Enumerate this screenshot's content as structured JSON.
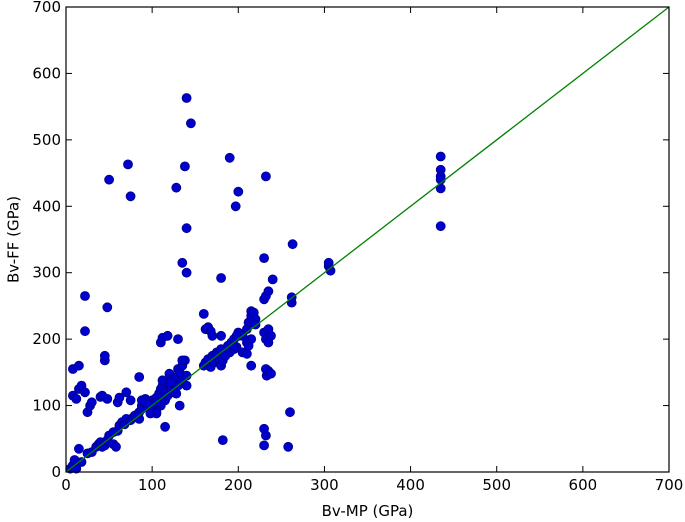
{
  "chart_data": {
    "type": "scatter",
    "xlabel": "Bv-MP (GPa)",
    "ylabel": "Bv-FF (GPa)",
    "xlim": [
      0,
      700
    ],
    "ylim": [
      0,
      700
    ],
    "xticks": [
      0,
      100,
      200,
      300,
      400,
      500,
      600,
      700
    ],
    "yticks": [
      0,
      100,
      200,
      300,
      400,
      500,
      600,
      700
    ],
    "grid": false,
    "colors": {
      "points": "#0000cc",
      "point_edge": "#00008b",
      "reference_line": "#008000"
    },
    "reference_line": {
      "from": [
        0,
        0
      ],
      "to": [
        700,
        700
      ]
    },
    "series": [
      {
        "values": [
          [
            5,
            5
          ],
          [
            8,
            10
          ],
          [
            10,
            18
          ],
          [
            12,
            5
          ],
          [
            15,
            35
          ],
          [
            18,
            15
          ],
          [
            25,
            28
          ],
          [
            30,
            30
          ],
          [
            35,
            38
          ],
          [
            38,
            42
          ],
          [
            40,
            45
          ],
          [
            42,
            38
          ],
          [
            45,
            40
          ],
          [
            48,
            48
          ],
          [
            50,
            55
          ],
          [
            55,
            42
          ],
          [
            55,
            60
          ],
          [
            58,
            38
          ],
          [
            60,
            62
          ],
          [
            62,
            70
          ],
          [
            65,
            75
          ],
          [
            68,
            72
          ],
          [
            70,
            80
          ],
          [
            75,
            78
          ],
          [
            78,
            82
          ],
          [
            80,
            85
          ],
          [
            85,
            80
          ],
          [
            85,
            90
          ],
          [
            88,
            95
          ],
          [
            88,
            100
          ],
          [
            90,
            105
          ],
          [
            92,
            110
          ],
          [
            95,
            98
          ],
          [
            98,
            102
          ],
          [
            100,
            100
          ],
          [
            100,
            108
          ],
          [
            102,
            95
          ],
          [
            105,
            90
          ],
          [
            105,
            112
          ],
          [
            108,
            118
          ],
          [
            110,
            100
          ],
          [
            110,
            125
          ],
          [
            112,
            130
          ],
          [
            115,
            108
          ],
          [
            115,
            120
          ],
          [
            118,
            115
          ],
          [
            118,
            135
          ],
          [
            120,
            140
          ],
          [
            120,
            148
          ],
          [
            122,
            125
          ],
          [
            125,
            120
          ],
          [
            128,
            130
          ],
          [
            130,
            145
          ],
          [
            130,
            155
          ],
          [
            132,
            150
          ],
          [
            135,
            138
          ],
          [
            135,
            160
          ],
          [
            138,
            168
          ],
          [
            140,
            130
          ],
          [
            140,
            145
          ],
          [
            160,
            160
          ],
          [
            162,
            165
          ],
          [
            165,
            170
          ],
          [
            168,
            158
          ],
          [
            170,
            175
          ],
          [
            172,
            165
          ],
          [
            175,
            180
          ],
          [
            178,
            170
          ],
          [
            180,
            185
          ],
          [
            180,
            160
          ],
          [
            182,
            168
          ],
          [
            185,
            175
          ],
          [
            188,
            190
          ],
          [
            190,
            180
          ],
          [
            192,
            195
          ],
          [
            195,
            200
          ],
          [
            195,
            185
          ],
          [
            198,
            188
          ],
          [
            200,
            205
          ],
          [
            200,
            210
          ],
          [
            205,
            205
          ],
          [
            210,
            215
          ],
          [
            212,
            225
          ],
          [
            215,
            235
          ],
          [
            215,
            242
          ],
          [
            218,
            240
          ],
          [
            220,
            230
          ],
          [
            210,
            195
          ],
          [
            212,
            190
          ],
          [
            215,
            160
          ],
          [
            230,
            210
          ],
          [
            232,
            200
          ],
          [
            235,
            195
          ],
          [
            235,
            215
          ],
          [
            238,
            205
          ],
          [
            240,
            290
          ],
          [
            230,
            260
          ],
          [
            232,
            265
          ],
          [
            235,
            272
          ],
          [
            230,
            322
          ],
          [
            262,
            255
          ],
          [
            262,
            263
          ],
          [
            263,
            343
          ],
          [
            233,
            145
          ],
          [
            235,
            152
          ],
          [
            232,
            155
          ],
          [
            238,
            148
          ],
          [
            305,
            310
          ],
          [
            305,
            315
          ],
          [
            307,
            303
          ],
          [
            435,
            475
          ],
          [
            435,
            455
          ],
          [
            435,
            445
          ],
          [
            435,
            440
          ],
          [
            435,
            427
          ],
          [
            435,
            370
          ],
          [
            135,
            168
          ],
          [
            130,
            130
          ],
          [
            125,
            140
          ],
          [
            100,
            90
          ],
          [
            8,
            155
          ],
          [
            8,
            115
          ],
          [
            12,
            110
          ],
          [
            15,
            125
          ],
          [
            15,
            160
          ],
          [
            18,
            130
          ],
          [
            22,
            120
          ],
          [
            22,
            212
          ],
          [
            25,
            90
          ],
          [
            28,
            100
          ],
          [
            30,
            105
          ],
          [
            40,
            113
          ],
          [
            42,
            115
          ],
          [
            45,
            168
          ],
          [
            45,
            175
          ],
          [
            48,
            110
          ],
          [
            60,
            105
          ],
          [
            62,
            112
          ],
          [
            70,
            120
          ],
          [
            75,
            108
          ],
          [
            85,
            143
          ],
          [
            110,
            195
          ],
          [
            112,
            202
          ],
          [
            118,
            205
          ],
          [
            130,
            200
          ],
          [
            135,
            315
          ],
          [
            140,
            300
          ],
          [
            160,
            238
          ],
          [
            162,
            215
          ],
          [
            165,
            218
          ],
          [
            168,
            212
          ],
          [
            170,
            205
          ],
          [
            180,
            292
          ],
          [
            180,
            205
          ],
          [
            195,
            190
          ],
          [
            198,
            205
          ],
          [
            205,
            180
          ],
          [
            210,
            178
          ],
          [
            215,
            200
          ],
          [
            220,
            222
          ],
          [
            22,
            265
          ],
          [
            48,
            248
          ],
          [
            50,
            440
          ],
          [
            72,
            463
          ],
          [
            75,
            415
          ],
          [
            128,
            428
          ],
          [
            138,
            460
          ],
          [
            140,
            563
          ],
          [
            140,
            367
          ],
          [
            145,
            525
          ],
          [
            190,
            473
          ],
          [
            197,
            400
          ],
          [
            200,
            422
          ],
          [
            232,
            445
          ],
          [
            230,
            40
          ],
          [
            232,
            55
          ],
          [
            230,
            65
          ],
          [
            258,
            38
          ],
          [
            260,
            90
          ],
          [
            182,
            48
          ],
          [
            115,
            68
          ],
          [
            132,
            100
          ],
          [
            95,
            102
          ],
          [
            88,
            108
          ],
          [
            105,
            105
          ],
          [
            112,
            138
          ],
          [
            105,
            88
          ],
          [
            98,
            88
          ],
          [
            122,
            135
          ],
          [
            128,
            118
          ]
        ]
      }
    ]
  }
}
